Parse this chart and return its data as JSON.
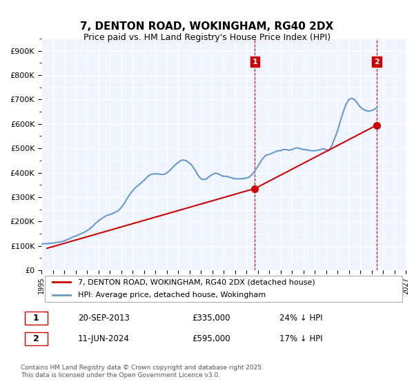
{
  "title": "7, DENTON ROAD, WOKINGHAM, RG40 2DX",
  "subtitle": "Price paid vs. HM Land Registry's House Price Index (HPI)",
  "xlabel": "",
  "ylabel": "",
  "ylim": [
    0,
    950000
  ],
  "yticks": [
    0,
    100000,
    200000,
    300000,
    400000,
    500000,
    600000,
    700000,
    800000,
    900000
  ],
  "ytick_labels": [
    "£0",
    "£100K",
    "£200K",
    "£300K",
    "£400K",
    "£500K",
    "£600K",
    "£700K",
    "£800K",
    "£900K"
  ],
  "background_color": "#ffffff",
  "plot_bg_color": "#f0f4ff",
  "grid_color": "#ffffff",
  "hpi_color": "#6699cc",
  "price_color": "#cc0000",
  "vline_color": "#cc0000",
  "transaction1": {
    "date": "20-SEP-2013",
    "price": 335000,
    "label": "1",
    "pct": "24%↓ HPI"
  },
  "transaction2": {
    "date": "11-JUN-2024",
    "price": 595000,
    "label": "2",
    "pct": "17%↓ HPI"
  },
  "legend_label1": "7, DENTON ROAD, WOKINGHAM, RG40 2DX (detached house)",
  "legend_label2": "HPI: Average price, detached house, Wokingham",
  "footer": "Contains HM Land Registry data © Crown copyright and database right 2025.\nThis data is licensed under the Open Government Licence v3.0.",
  "hpi_data": {
    "years": [
      1995.0,
      1995.25,
      1995.5,
      1995.75,
      1996.0,
      1996.25,
      1996.5,
      1996.75,
      1997.0,
      1997.25,
      1997.5,
      1997.75,
      1998.0,
      1998.25,
      1998.5,
      1998.75,
      1999.0,
      1999.25,
      1999.5,
      1999.75,
      2000.0,
      2000.25,
      2000.5,
      2000.75,
      2001.0,
      2001.25,
      2001.5,
      2001.75,
      2002.0,
      2002.25,
      2002.5,
      2002.75,
      2003.0,
      2003.25,
      2003.5,
      2003.75,
      2004.0,
      2004.25,
      2004.5,
      2004.75,
      2005.0,
      2005.25,
      2005.5,
      2005.75,
      2006.0,
      2006.25,
      2006.5,
      2006.75,
      2007.0,
      2007.25,
      2007.5,
      2007.75,
      2008.0,
      2008.25,
      2008.5,
      2008.75,
      2009.0,
      2009.25,
      2009.5,
      2009.75,
      2010.0,
      2010.25,
      2010.5,
      2010.75,
      2011.0,
      2011.25,
      2011.5,
      2011.75,
      2012.0,
      2012.25,
      2012.5,
      2012.75,
      2013.0,
      2013.25,
      2013.5,
      2013.75,
      2014.0,
      2014.25,
      2014.5,
      2014.75,
      2015.0,
      2015.25,
      2015.5,
      2015.75,
      2016.0,
      2016.25,
      2016.5,
      2016.75,
      2017.0,
      2017.25,
      2017.5,
      2017.75,
      2018.0,
      2018.25,
      2018.5,
      2018.75,
      2019.0,
      2019.25,
      2019.5,
      2019.75,
      2020.0,
      2020.25,
      2020.5,
      2020.75,
      2021.0,
      2021.25,
      2021.5,
      2021.75,
      2022.0,
      2022.25,
      2022.5,
      2022.75,
      2023.0,
      2023.25,
      2023.5,
      2023.75,
      2024.0,
      2024.25,
      2024.5
    ],
    "values": [
      108000,
      108500,
      109000,
      110000,
      111000,
      113000,
      115000,
      117000,
      120000,
      125000,
      130000,
      136000,
      140000,
      145000,
      150000,
      155000,
      162000,
      170000,
      180000,
      192000,
      202000,
      210000,
      218000,
      225000,
      228000,
      232000,
      238000,
      244000,
      256000,
      272000,
      292000,
      310000,
      325000,
      338000,
      348000,
      358000,
      368000,
      380000,
      390000,
      395000,
      395000,
      395000,
      393000,
      393000,
      398000,
      408000,
      420000,
      432000,
      442000,
      450000,
      452000,
      448000,
      440000,
      428000,
      410000,
      390000,
      375000,
      372000,
      375000,
      385000,
      392000,
      398000,
      396000,
      390000,
      385000,
      385000,
      382000,
      378000,
      375000,
      375000,
      375000,
      376000,
      378000,
      382000,
      392000,
      408000,
      425000,
      445000,
      462000,
      472000,
      475000,
      480000,
      485000,
      490000,
      490000,
      495000,
      495000,
      492000,
      495000,
      500000,
      502000,
      498000,
      495000,
      495000,
      492000,
      490000,
      490000,
      492000,
      495000,
      498000,
      495000,
      490000,
      510000,
      540000,
      570000,
      610000,
      648000,
      680000,
      700000,
      705000,
      700000,
      685000,
      670000,
      660000,
      655000,
      652000,
      655000,
      660000,
      668000
    ]
  },
  "price_data": {
    "years": [
      1995.5,
      2013.75,
      2024.45
    ],
    "values": [
      90000,
      335000,
      595000
    ]
  },
  "transaction1_year": 2013.75,
  "transaction2_year": 2024.45,
  "xmin": 1995,
  "xmax": 2027
}
